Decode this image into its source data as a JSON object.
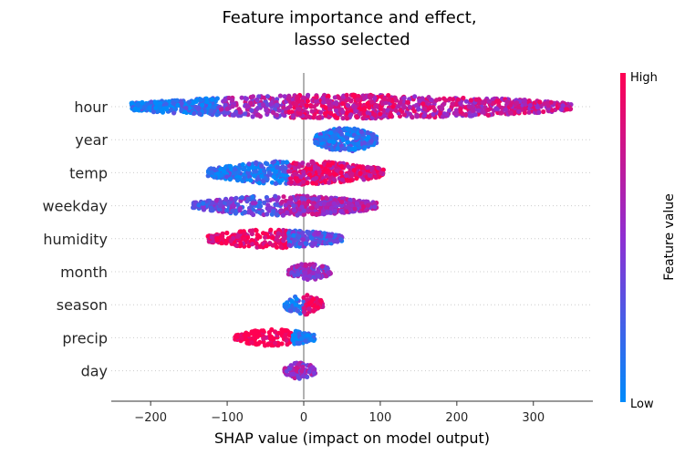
{
  "chart_data": {
    "type": "scatter",
    "subtype": "beeswarm",
    "title_line1": "Feature importance and effect,",
    "title_line2": "lasso selected",
    "xlabel": "SHAP value (impact on model output)",
    "xlim": [
      -255,
      380
    ],
    "xticks": [
      -200,
      -100,
      0,
      100,
      200,
      300
    ],
    "colorbar": {
      "title": "Feature value",
      "high_label": "High",
      "low_label": "Low",
      "low_color": "#008bfb",
      "high_color": "#ff0052"
    },
    "features": [
      {
        "name": "hour",
        "min": -225,
        "max": 350,
        "spread": 13,
        "segments": [
          [
            -225,
            -110,
            0.1,
            3
          ],
          [
            -110,
            -20,
            0.55,
            2
          ],
          [
            -20,
            120,
            0.8,
            3
          ],
          [
            120,
            350,
            0.7,
            2
          ]
        ]
      },
      {
        "name": "year",
        "min": 15,
        "max": 95,
        "spread": 13,
        "segments": [
          [
            15,
            95,
            0.15,
            4
          ]
        ]
      },
      {
        "name": "temp",
        "min": -125,
        "max": 105,
        "spread": 13,
        "segments": [
          [
            -125,
            -20,
            0.12,
            3
          ],
          [
            -20,
            105,
            0.85,
            3
          ]
        ]
      },
      {
        "name": "weekday",
        "min": -145,
        "max": 95,
        "spread": 11,
        "segments": [
          [
            -145,
            -30,
            0.35,
            2
          ],
          [
            -30,
            95,
            0.6,
            3
          ]
        ]
      },
      {
        "name": "humidity",
        "min": -125,
        "max": 50,
        "spread": 10,
        "segments": [
          [
            -125,
            -20,
            0.95,
            2
          ],
          [
            -20,
            50,
            0.3,
            3
          ]
        ]
      },
      {
        "name": "month",
        "min": -20,
        "max": 35,
        "spread": 9,
        "segments": [
          [
            -20,
            35,
            0.5,
            3
          ]
        ]
      },
      {
        "name": "season",
        "min": -25,
        "max": 25,
        "spread": 11,
        "segments": [
          [
            -25,
            0,
            0.1,
            2
          ],
          [
            0,
            25,
            0.95,
            3
          ]
        ]
      },
      {
        "name": "precip",
        "min": -90,
        "max": 15,
        "spread": 9,
        "segments": [
          [
            -90,
            -15,
            1.0,
            2
          ],
          [
            -15,
            15,
            0.05,
            3
          ]
        ]
      },
      {
        "name": "day",
        "min": -25,
        "max": 15,
        "spread": 9,
        "segments": [
          [
            -25,
            15,
            0.55,
            3
          ]
        ]
      }
    ]
  }
}
